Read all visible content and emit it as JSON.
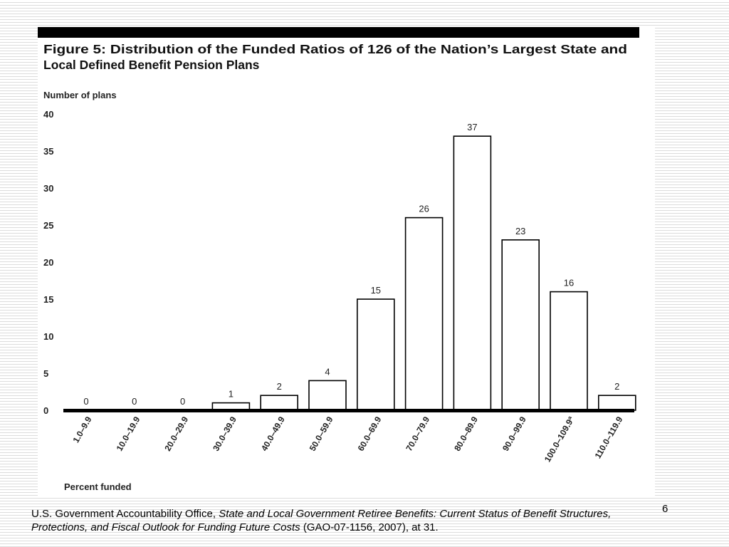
{
  "slide": {
    "number": "6",
    "citation": {
      "prefix": "U.S. Government Accountability Office, ",
      "title": "State and Local Government Retiree Benefits:  Current Status of Benefit Structures, Protections, and Fiscal Outlook for Funding Future Costs",
      "suffix": " (GAO-07-1156, 2007), at 31."
    }
  },
  "chart_data": {
    "type": "bar",
    "title_line1": "Figure 5: Distribution of the Funded Ratios of 126 of the Nation’s Largest State and",
    "title_line2": "Local Defined Benefit Pension Plans",
    "ylabel": "Number of plans",
    "xlabel": "Percent funded",
    "ylim": [
      0,
      40
    ],
    "yticks": [
      0,
      5,
      10,
      15,
      20,
      25,
      30,
      35,
      40
    ],
    "categories": [
      "1.0–9.9",
      "10.0–19.9",
      "20.0–29.9",
      "30.0–39.9",
      "40.0–49.9",
      "50.0–59.9",
      "60.0–69.9",
      "70.0–79.9",
      "80.0–89.9",
      "90.0–99.9",
      "100.0–109.9ª",
      "110.0–119.9"
    ],
    "values": [
      0,
      0,
      0,
      1,
      2,
      4,
      15,
      26,
      37,
      23,
      16,
      2
    ],
    "colors": {
      "title_bar": "#000000",
      "bar_fill": "#ffffff",
      "bar_stroke": "#000000",
      "axis": "#000000"
    }
  }
}
